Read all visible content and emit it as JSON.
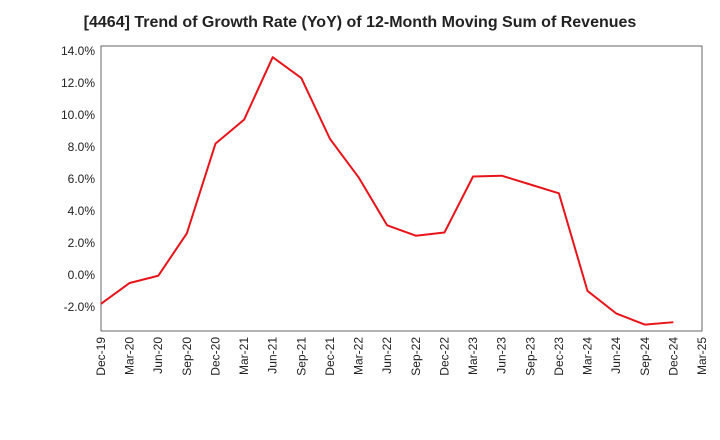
{
  "chart_data": {
    "type": "line",
    "title": "[4464]  Trend of Growth Rate (YoY) of 12-Month Moving Sum of Revenues",
    "xlabel": "",
    "ylabel": "",
    "x_tick_labels": [
      "Dec-19",
      "Mar-20",
      "Jun-20",
      "Sep-20",
      "Dec-20",
      "Mar-21",
      "Jun-21",
      "Sep-21",
      "Dec-21",
      "Mar-22",
      "Jun-22",
      "Sep-22",
      "Dec-22",
      "Mar-23",
      "Jun-23",
      "Sep-23",
      "Dec-23",
      "Mar-24",
      "Jun-24",
      "Sep-24",
      "Dec-24",
      "Mar-25"
    ],
    "y_tick_values": [
      -2,
      0,
      2,
      4,
      6,
      8,
      10,
      12,
      14
    ],
    "y_tick_labels": [
      "-2.0%",
      "0.0%",
      "2.0%",
      "4.0%",
      "6.0%",
      "8.0%",
      "10.0%",
      "12.0%",
      "14.0%"
    ],
    "ylim": [
      -3.5,
      14.3
    ],
    "grid": true,
    "series": [
      {
        "color": "#e8141a",
        "x": [
          "Dec-19",
          "Mar-20",
          "Jun-20",
          "Sep-20",
          "Dec-20",
          "Mar-21",
          "Jun-21",
          "Sep-21",
          "Dec-21",
          "Mar-22",
          "Jun-22",
          "Sep-22",
          "Dec-22",
          "Mar-23",
          "Jun-23",
          "Sep-23",
          "Dec-23",
          "Mar-24",
          "Jun-24",
          "Sep-24",
          "Dec-24"
        ],
        "values": [
          -1.8,
          -0.5,
          -0.05,
          2.6,
          8.2,
          9.7,
          13.6,
          12.3,
          8.5,
          6.1,
          3.1,
          2.45,
          2.65,
          6.15,
          6.2,
          5.65,
          5.1,
          -1.0,
          -2.4,
          -3.1,
          -2.95
        ]
      }
    ]
  }
}
